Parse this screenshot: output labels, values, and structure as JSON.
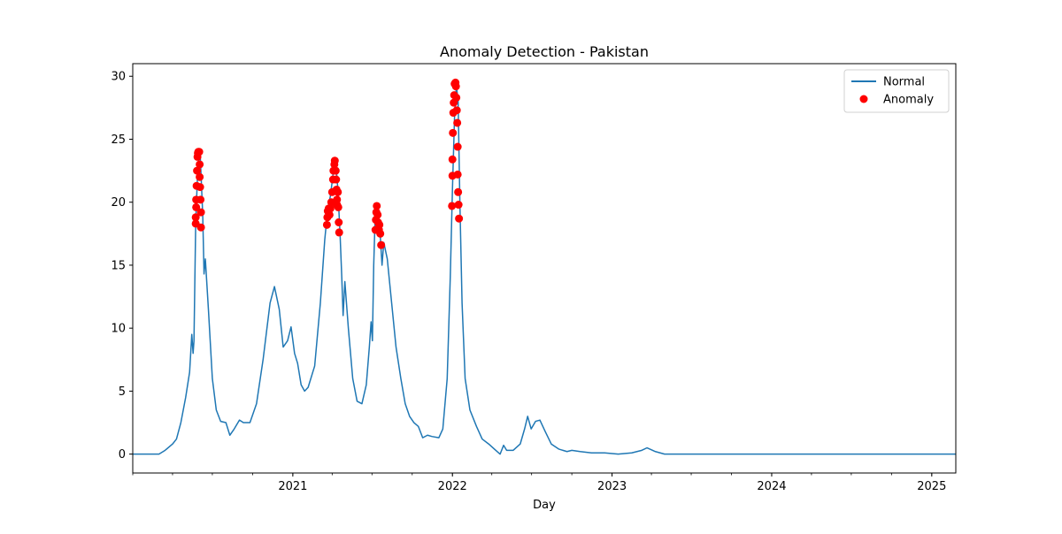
{
  "chart_data": {
    "type": "line",
    "title": "Anomaly Detection - Pakistan",
    "xlabel": "Day",
    "ylabel": "",
    "xlim": [
      "2020-01-01",
      "2025-02-25"
    ],
    "ylim": [
      -1.5,
      31
    ],
    "grid": false,
    "legend_position": "top-right",
    "y_ticks": [
      0,
      5,
      10,
      15,
      20,
      25,
      30
    ],
    "x_ticks": [
      {
        "date": "2021-01-01",
        "label": "2021"
      },
      {
        "date": "2022-01-01",
        "label": "2022"
      },
      {
        "date": "2023-01-01",
        "label": "2023"
      },
      {
        "date": "2024-01-01",
        "label": "2024"
      },
      {
        "date": "2025-01-01",
        "label": "2025"
      }
    ],
    "colors": {
      "line": "#1f77b4",
      "anomaly": "#ff0000"
    },
    "series": [
      {
        "name": "Normal",
        "kind": "line",
        "points": [
          [
            "2020-01-01",
            0
          ],
          [
            "2020-03-01",
            0
          ],
          [
            "2020-03-15",
            0.3
          ],
          [
            "2020-04-01",
            0.8
          ],
          [
            "2020-04-10",
            1.2
          ],
          [
            "2020-04-20",
            2.5
          ],
          [
            "2020-05-01",
            4.5
          ],
          [
            "2020-05-10",
            6.5
          ],
          [
            "2020-05-15",
            9.5
          ],
          [
            "2020-05-18",
            8.0
          ],
          [
            "2020-05-20",
            9.0
          ],
          [
            "2020-05-24",
            18.5
          ],
          [
            "2020-05-28",
            22.0
          ],
          [
            "2020-06-01",
            23.8
          ],
          [
            "2020-06-03",
            24.0
          ],
          [
            "2020-06-06",
            21.5
          ],
          [
            "2020-06-09",
            19.0
          ],
          [
            "2020-06-12",
            14.3
          ],
          [
            "2020-06-15",
            15.5
          ],
          [
            "2020-06-22",
            11.5
          ],
          [
            "2020-07-01",
            6.0
          ],
          [
            "2020-07-10",
            3.5
          ],
          [
            "2020-07-20",
            2.6
          ],
          [
            "2020-08-01",
            2.5
          ],
          [
            "2020-08-10",
            1.5
          ],
          [
            "2020-08-20",
            2.0
          ],
          [
            "2020-09-01",
            2.7
          ],
          [
            "2020-09-10",
            2.5
          ],
          [
            "2020-09-25",
            2.5
          ],
          [
            "2020-10-10",
            4.0
          ],
          [
            "2020-10-25",
            7.5
          ],
          [
            "2020-11-10",
            12.0
          ],
          [
            "2020-11-20",
            13.3
          ],
          [
            "2020-12-01",
            11.5
          ],
          [
            "2020-12-10",
            8.5
          ],
          [
            "2020-12-20",
            9.0
          ],
          [
            "2020-12-28",
            10.1
          ],
          [
            "2021-01-05",
            8.0
          ],
          [
            "2021-01-12",
            7.2
          ],
          [
            "2021-01-20",
            5.5
          ],
          [
            "2021-01-28",
            5.0
          ],
          [
            "2021-02-05",
            5.3
          ],
          [
            "2021-02-20",
            7.0
          ],
          [
            "2021-03-05",
            12.0
          ],
          [
            "2021-03-15",
            17.0
          ],
          [
            "2021-03-22",
            19.5
          ],
          [
            "2021-03-28",
            20.5
          ],
          [
            "2021-04-04",
            22.5
          ],
          [
            "2021-04-09",
            23.3
          ],
          [
            "2021-04-14",
            21.0
          ],
          [
            "2021-04-19",
            17.5
          ],
          [
            "2021-04-23",
            14.0
          ],
          [
            "2021-04-26",
            11.0
          ],
          [
            "2021-04-30",
            13.7
          ],
          [
            "2021-05-08",
            10.0
          ],
          [
            "2021-05-18",
            6.0
          ],
          [
            "2021-05-28",
            4.2
          ],
          [
            "2021-06-08",
            4.0
          ],
          [
            "2021-06-18",
            5.5
          ],
          [
            "2021-06-25",
            8.5
          ],
          [
            "2021-06-29",
            10.5
          ],
          [
            "2021-07-02",
            9.0
          ],
          [
            "2021-07-05",
            15.0
          ],
          [
            "2021-07-08",
            18.5
          ],
          [
            "2021-07-12",
            19.7
          ],
          [
            "2021-07-16",
            18.5
          ],
          [
            "2021-07-20",
            17.3
          ],
          [
            "2021-07-24",
            15.0
          ],
          [
            "2021-07-28",
            16.8
          ],
          [
            "2021-08-05",
            15.5
          ],
          [
            "2021-08-15",
            12.0
          ],
          [
            "2021-08-25",
            8.5
          ],
          [
            "2021-09-05",
            6.0
          ],
          [
            "2021-09-15",
            4.0
          ],
          [
            "2021-09-25",
            3.0
          ],
          [
            "2021-10-05",
            2.5
          ],
          [
            "2021-10-15",
            2.2
          ],
          [
            "2021-10-25",
            1.3
          ],
          [
            "2021-11-05",
            1.5
          ],
          [
            "2021-11-15",
            1.4
          ],
          [
            "2021-12-01",
            1.3
          ],
          [
            "2021-12-10",
            2.0
          ],
          [
            "2021-12-20",
            6.0
          ],
          [
            "2021-12-27",
            14.0
          ],
          [
            "2022-01-01",
            21.0
          ],
          [
            "2022-01-06",
            27.0
          ],
          [
            "2022-01-10",
            29.3
          ],
          [
            "2022-01-14",
            28.0
          ],
          [
            "2022-01-18",
            20.0
          ],
          [
            "2022-01-23",
            12.0
          ],
          [
            "2022-01-30",
            6.0
          ],
          [
            "2022-02-10",
            3.5
          ],
          [
            "2022-02-25",
            2.2
          ],
          [
            "2022-03-10",
            1.2
          ],
          [
            "2022-03-25",
            0.8
          ],
          [
            "2022-04-10",
            0.3
          ],
          [
            "2022-04-20",
            0.0
          ],
          [
            "2022-04-28",
            0.7
          ],
          [
            "2022-05-05",
            0.3
          ],
          [
            "2022-05-20",
            0.3
          ],
          [
            "2022-06-05",
            0.8
          ],
          [
            "2022-06-15",
            2.0
          ],
          [
            "2022-06-22",
            3.0
          ],
          [
            "2022-06-30",
            2.0
          ],
          [
            "2022-07-10",
            2.6
          ],
          [
            "2022-07-20",
            2.7
          ],
          [
            "2022-08-01",
            1.8
          ],
          [
            "2022-08-15",
            0.8
          ],
          [
            "2022-09-01",
            0.4
          ],
          [
            "2022-09-20",
            0.2
          ],
          [
            "2022-10-01",
            0.3
          ],
          [
            "2022-10-20",
            0.2
          ],
          [
            "2022-11-15",
            0.1
          ],
          [
            "2022-12-15",
            0.1
          ],
          [
            "2023-01-15",
            0.0
          ],
          [
            "2023-02-15",
            0.1
          ],
          [
            "2023-03-10",
            0.3
          ],
          [
            "2023-03-22",
            0.5
          ],
          [
            "2023-04-10",
            0.2
          ],
          [
            "2023-05-01",
            0.0
          ],
          [
            "2025-02-25",
            0.0
          ]
        ]
      },
      {
        "name": "Anomaly",
        "kind": "scatter",
        "points": [
          [
            "2020-05-24",
            18.3
          ],
          [
            "2020-05-24",
            18.8
          ],
          [
            "2020-05-25",
            19.6
          ],
          [
            "2020-05-25",
            20.2
          ],
          [
            "2020-05-26",
            21.3
          ],
          [
            "2020-05-27",
            22.5
          ],
          [
            "2020-05-28",
            23.6
          ],
          [
            "2020-05-29",
            23.9
          ],
          [
            "2020-05-30",
            24.0
          ],
          [
            "2020-06-01",
            24.0
          ],
          [
            "2020-06-02",
            23.0
          ],
          [
            "2020-06-02",
            22.0
          ],
          [
            "2020-06-03",
            21.2
          ],
          [
            "2020-06-04",
            20.2
          ],
          [
            "2020-06-05",
            19.2
          ],
          [
            "2020-06-05",
            18.0
          ],
          [
            "2021-03-20",
            18.2
          ],
          [
            "2021-03-21",
            18.8
          ],
          [
            "2021-03-22",
            19.3
          ],
          [
            "2021-03-24",
            19.5
          ],
          [
            "2021-03-26",
            19.0
          ],
          [
            "2021-03-28",
            19.5
          ],
          [
            "2021-03-30",
            20.0
          ],
          [
            "2021-04-01",
            20.8
          ],
          [
            "2021-04-03",
            21.8
          ],
          [
            "2021-04-04",
            22.5
          ],
          [
            "2021-04-06",
            23.0
          ],
          [
            "2021-04-07",
            23.3
          ],
          [
            "2021-04-09",
            22.5
          ],
          [
            "2021-04-10",
            21.8
          ],
          [
            "2021-04-11",
            21.0
          ],
          [
            "2021-04-12",
            20.2
          ],
          [
            "2021-04-12",
            19.8
          ],
          [
            "2021-04-14",
            20.8
          ],
          [
            "2021-04-15",
            19.6
          ],
          [
            "2021-04-16",
            18.4
          ],
          [
            "2021-04-17",
            17.6
          ],
          [
            "2021-07-09",
            17.8
          ],
          [
            "2021-07-10",
            18.6
          ],
          [
            "2021-07-11",
            19.2
          ],
          [
            "2021-07-12",
            19.7
          ],
          [
            "2021-07-14",
            19.0
          ],
          [
            "2021-07-15",
            18.4
          ],
          [
            "2021-07-17",
            17.8
          ],
          [
            "2021-07-18",
            18.2
          ],
          [
            "2021-07-20",
            17.5
          ],
          [
            "2021-07-22",
            16.6
          ],
          [
            "2021-12-31",
            19.7
          ],
          [
            "2022-01-01",
            23.4
          ],
          [
            "2022-01-01",
            22.1
          ],
          [
            "2022-01-02",
            25.5
          ],
          [
            "2022-01-03",
            27.1
          ],
          [
            "2022-01-04",
            27.9
          ],
          [
            "2022-01-05",
            28.5
          ],
          [
            "2022-01-06",
            29.4
          ],
          [
            "2022-01-08",
            29.5
          ],
          [
            "2022-01-09",
            29.2
          ],
          [
            "2022-01-10",
            28.3
          ],
          [
            "2022-01-11",
            27.3
          ],
          [
            "2022-01-12",
            26.3
          ],
          [
            "2022-01-13",
            24.4
          ],
          [
            "2022-01-13",
            22.2
          ],
          [
            "2022-01-14",
            20.8
          ],
          [
            "2022-01-15",
            19.8
          ],
          [
            "2022-01-16",
            18.7
          ]
        ]
      }
    ]
  }
}
